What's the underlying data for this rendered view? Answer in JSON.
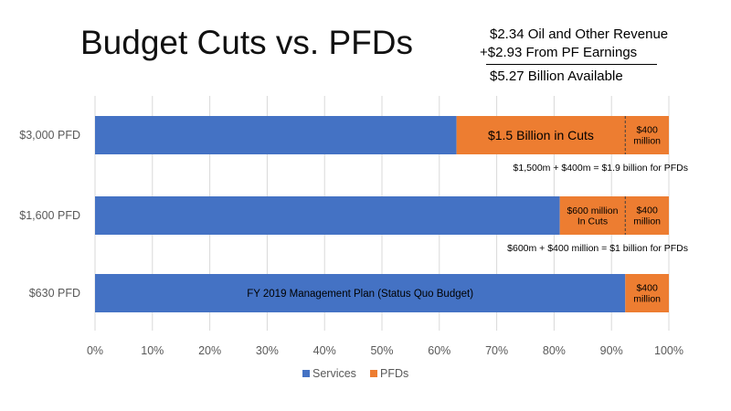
{
  "chart_data": {
    "type": "bar",
    "orientation": "horizontal",
    "stacked": true,
    "title": "Budget Cuts vs. PFDs",
    "categories": [
      "$3,000 PFD",
      "$1,600 PFD",
      "$630 PFD"
    ],
    "series": [
      {
        "name": "Services",
        "color": "#4472C4",
        "values": [
          63,
          81,
          92.4
        ]
      },
      {
        "name": "PFDs",
        "color": "#ED7D31",
        "values": [
          37,
          19,
          7.6
        ]
      }
    ],
    "pfd_split_at": [
      92.4,
      92.4,
      92.4
    ],
    "xlim": [
      0,
      100
    ],
    "xticks": [
      "0%",
      "10%",
      "20%",
      "30%",
      "40%",
      "50%",
      "60%",
      "70%",
      "80%",
      "90%",
      "100%"
    ],
    "legend_position": "bottom",
    "bar_labels": [
      {
        "main": [
          "$1.5  Billion in Cuts"
        ],
        "right": [
          "$400",
          "million"
        ],
        "note": "$1,500m + $400m = $1.9 billion for PFDs"
      },
      {
        "main": [
          "$600 million",
          "In Cuts"
        ],
        "right": [
          "$400",
          "million"
        ],
        "note": "$600m + $400 million = $1 billion for PFDs"
      },
      {
        "main": [
          "FY 2019 Management Plan (Status Quo Budget)"
        ],
        "right": [
          "$400",
          "million"
        ],
        "note": ""
      }
    ]
  },
  "revenue": {
    "line1": "$2.34 Oil and Other Revenue",
    "line2": "+$2.93 From PF Earnings",
    "total": "$5.27 Billion Available"
  }
}
